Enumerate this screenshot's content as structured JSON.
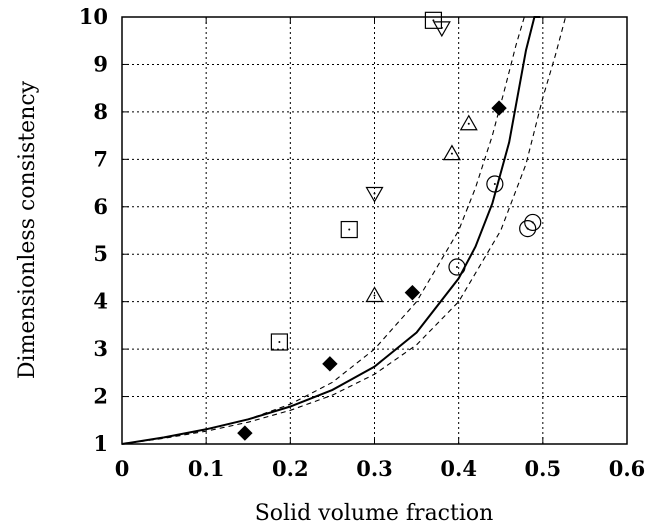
{
  "chart_data": {
    "type": "scatter",
    "xlabel": "Solid volume fraction",
    "ylabel": "Dimensionless consistency",
    "xlim": [
      0,
      0.6
    ],
    "ylim": [
      1,
      10
    ],
    "xticks": [
      "0",
      "0.1",
      "0.2",
      "0.3",
      "0.4",
      "0.5",
      "0.6"
    ],
    "yticks": [
      "1",
      "2",
      "3",
      "4",
      "5",
      "6",
      "7",
      "8",
      "9",
      "10"
    ],
    "grid": true,
    "legend": "none",
    "series": [
      {
        "marker": "square",
        "points": [
          [
            0.187,
            3.15
          ],
          [
            0.27,
            5.52
          ],
          [
            0.37,
            9.93
          ]
        ]
      },
      {
        "marker": "triangle-down",
        "points": [
          [
            0.3,
            6.28
          ],
          [
            0.38,
            9.77
          ]
        ]
      },
      {
        "marker": "triangle-up",
        "points": [
          [
            0.3,
            4.13
          ],
          [
            0.392,
            7.12
          ],
          [
            0.412,
            7.75
          ]
        ]
      },
      {
        "marker": "circle",
        "points": [
          [
            0.398,
            4.73
          ],
          [
            0.443,
            6.48
          ],
          [
            0.482,
            5.54
          ],
          [
            0.488,
            5.67
          ]
        ]
      },
      {
        "marker": "diamond-filled",
        "points": [
          [
            0.146,
            1.23
          ],
          [
            0.247,
            2.69
          ],
          [
            0.345,
            4.19
          ],
          [
            0.448,
            8.08
          ]
        ]
      }
    ],
    "curves": [
      {
        "style": "solid",
        "x": [
          0,
          0.05,
          0.1,
          0.15,
          0.2,
          0.25,
          0.3,
          0.35,
          0.4,
          0.42,
          0.44,
          0.46,
          0.48,
          0.49,
          0.497
        ],
        "y": [
          1.0,
          1.14,
          1.31,
          1.52,
          1.79,
          2.14,
          2.63,
          3.35,
          4.49,
          5.16,
          6.07,
          7.36,
          9.3,
          10.0,
          10.0
        ]
      },
      {
        "style": "dashed",
        "x": [
          0,
          0.05,
          0.1,
          0.15,
          0.2,
          0.25,
          0.3,
          0.35,
          0.4,
          0.42,
          0.44,
          0.455,
          0.468,
          0.478
        ],
        "y": [
          1.0,
          1.13,
          1.3,
          1.52,
          1.84,
          2.3,
          3.0,
          4.0,
          5.5,
          6.4,
          7.5,
          8.5,
          9.4,
          10.0
        ]
      },
      {
        "style": "dashed",
        "x": [
          0,
          0.05,
          0.1,
          0.15,
          0.2,
          0.25,
          0.3,
          0.35,
          0.4,
          0.45,
          0.48,
          0.5,
          0.515,
          0.527
        ],
        "y": [
          1.0,
          1.12,
          1.27,
          1.46,
          1.71,
          2.03,
          2.47,
          3.09,
          4.0,
          5.5,
          6.9,
          8.3,
          9.2,
          10.0
        ]
      }
    ]
  }
}
